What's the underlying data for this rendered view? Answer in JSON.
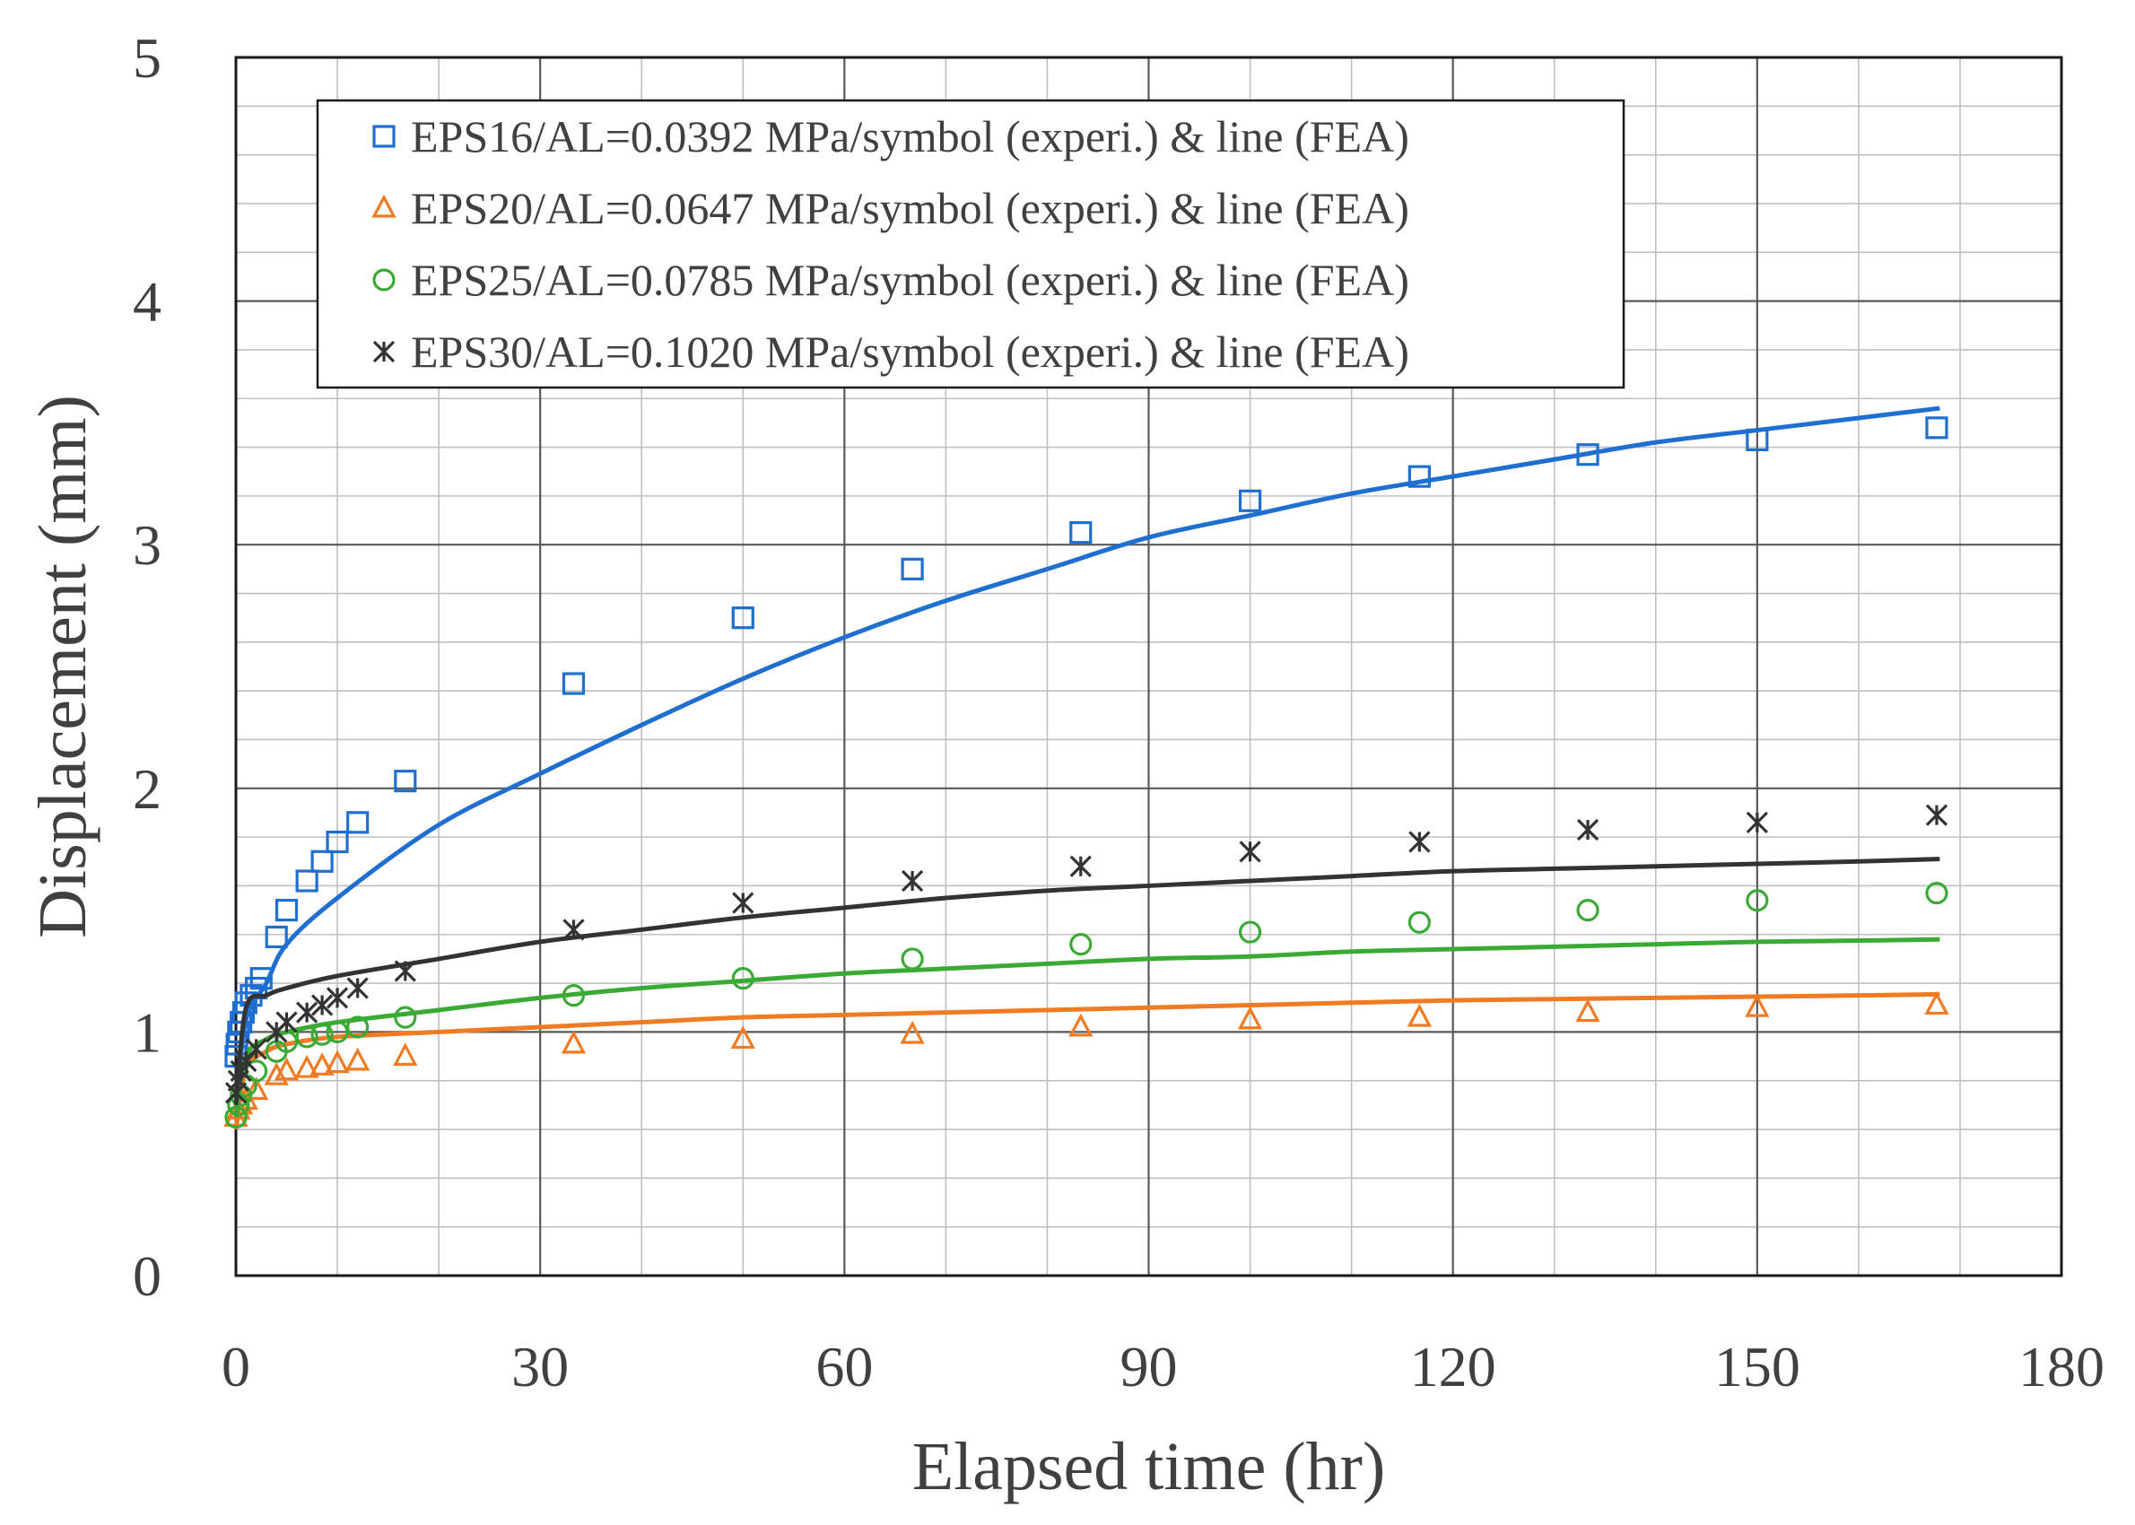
{
  "chart_data": {
    "type": "scatter",
    "title": "",
    "xlabel": "Elapsed time (hr)",
    "ylabel": "Displacement (mm)",
    "xlim": [
      0,
      180
    ],
    "ylim": [
      0,
      5
    ],
    "x_ticks": [
      0,
      30,
      60,
      90,
      120,
      150,
      180
    ],
    "y_ticks": [
      0,
      1,
      2,
      3,
      4,
      5
    ],
    "x_minor_step": 10,
    "y_minor_step": 0.2,
    "legend_position": "top-left",
    "series": [
      {
        "name": "EPS16/AL=0.0392 MPa/symbol (experi.) & line (FEA)",
        "color": "#1f6fd1",
        "marker": "square",
        "experiment": {
          "x": [
            0,
            0.1,
            0.25,
            0.5,
            0.75,
            1,
            1.5,
            2,
            2.5,
            4,
            5,
            7,
            8.5,
            10,
            12,
            16.7,
            33.3,
            50,
            66.7,
            83.3,
            100,
            116.7,
            133.3,
            150,
            167.7
          ],
          "y": [
            0.9,
            0.95,
            1.0,
            1.04,
            1.08,
            1.12,
            1.15,
            1.18,
            1.22,
            1.39,
            1.5,
            1.62,
            1.7,
            1.78,
            1.86,
            2.03,
            2.43,
            2.7,
            2.9,
            3.05,
            3.18,
            3.28,
            3.37,
            3.43,
            3.48
          ]
        },
        "fea": {
          "x": [
            0,
            1,
            3,
            5,
            10,
            20,
            30,
            40,
            50,
            60,
            70,
            80,
            90,
            100,
            110,
            120,
            130,
            140,
            150,
            160,
            168
          ],
          "y": [
            0.7,
            1.05,
            1.2,
            1.36,
            1.55,
            1.85,
            2.06,
            2.26,
            2.45,
            2.62,
            2.77,
            2.9,
            3.03,
            3.12,
            3.21,
            3.28,
            3.35,
            3.42,
            3.47,
            3.52,
            3.56
          ]
        }
      },
      {
        "name": "EPS20/AL=0.0647 MPa/symbol (experi.) & line (FEA)",
        "color": "#f07b23",
        "marker": "triangle",
        "experiment": {
          "x": [
            0,
            0.25,
            0.5,
            1,
            2,
            4,
            5,
            7,
            8.5,
            10,
            12,
            16.7,
            33.3,
            50,
            66.7,
            83.3,
            100,
            116.7,
            133.3,
            150,
            167.7
          ],
          "y": [
            0.65,
            0.68,
            0.7,
            0.72,
            0.76,
            0.82,
            0.84,
            0.85,
            0.86,
            0.87,
            0.88,
            0.9,
            0.95,
            0.97,
            0.99,
            1.02,
            1.05,
            1.06,
            1.08,
            1.1,
            1.11
          ]
        },
        "fea": {
          "x": [
            0,
            1,
            3,
            5,
            10,
            20,
            30,
            40,
            50,
            60,
            70,
            80,
            90,
            100,
            110,
            120,
            130,
            140,
            150,
            160,
            168
          ],
          "y": [
            0.6,
            0.85,
            0.92,
            0.95,
            0.98,
            1.0,
            1.02,
            1.04,
            1.06,
            1.07,
            1.08,
            1.09,
            1.1,
            1.11,
            1.12,
            1.13,
            1.135,
            1.14,
            1.145,
            1.15,
            1.155
          ]
        }
      },
      {
        "name": "EPS25/AL=0.0785 MPa/symbol (experi.) & line (FEA)",
        "color": "#3aaa35",
        "marker": "circle",
        "experiment": {
          "x": [
            0,
            0.25,
            0.5,
            1,
            2,
            4,
            5,
            7,
            8.5,
            10,
            12,
            16.7,
            33.3,
            50,
            66.7,
            83.3,
            100,
            116.7,
            133.3,
            150,
            167.7
          ],
          "y": [
            0.65,
            0.7,
            0.74,
            0.78,
            0.84,
            0.92,
            0.96,
            0.98,
            0.99,
            1.0,
            1.02,
            1.06,
            1.15,
            1.22,
            1.3,
            1.36,
            1.41,
            1.45,
            1.5,
            1.54,
            1.57
          ]
        },
        "fea": {
          "x": [
            0,
            1,
            3,
            5,
            10,
            20,
            30,
            40,
            50,
            60,
            70,
            80,
            90,
            100,
            110,
            120,
            130,
            140,
            150,
            160,
            168
          ],
          "y": [
            0.65,
            0.9,
            0.97,
            1.0,
            1.04,
            1.09,
            1.14,
            1.18,
            1.21,
            1.24,
            1.26,
            1.28,
            1.3,
            1.31,
            1.33,
            1.34,
            1.35,
            1.36,
            1.37,
            1.375,
            1.38
          ]
        }
      },
      {
        "name": "EPS30/AL=0.1020 MPa/symbol (experi.) & line (FEA)",
        "color": "#333333",
        "marker": "asterisk",
        "experiment": {
          "x": [
            0,
            0.25,
            0.5,
            1,
            2,
            4,
            5,
            7,
            8.5,
            10,
            12,
            16.7,
            33.3,
            50,
            66.7,
            83.3,
            100,
            116.7,
            133.3,
            150,
            167.7
          ],
          "y": [
            0.75,
            0.8,
            0.84,
            0.88,
            0.93,
            1.0,
            1.04,
            1.08,
            1.11,
            1.14,
            1.18,
            1.25,
            1.42,
            1.53,
            1.62,
            1.68,
            1.74,
            1.78,
            1.83,
            1.86,
            1.89
          ]
        },
        "fea": {
          "x": [
            0,
            1,
            3,
            5,
            10,
            20,
            30,
            40,
            50,
            60,
            70,
            80,
            90,
            100,
            110,
            120,
            130,
            140,
            150,
            160,
            168
          ],
          "y": [
            0.7,
            1.1,
            1.15,
            1.18,
            1.23,
            1.3,
            1.37,
            1.42,
            1.47,
            1.51,
            1.55,
            1.58,
            1.6,
            1.62,
            1.64,
            1.66,
            1.67,
            1.68,
            1.69,
            1.7,
            1.71
          ]
        }
      }
    ]
  }
}
